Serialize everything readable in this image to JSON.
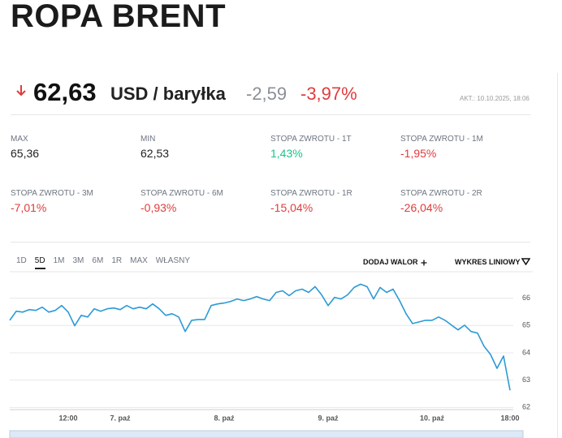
{
  "header": {
    "title": "ROPA BRENT",
    "price": "62,63",
    "unit": "USD / baryłka",
    "change": "-2,59",
    "change_pct": "-3,97%",
    "updated": "AKT.: 10.10.2025, 18:06"
  },
  "stats": [
    {
      "label": "MAX",
      "value": "65,36",
      "color": "#222222"
    },
    {
      "label": "MIN",
      "value": "62,53",
      "color": "#222222"
    },
    {
      "label": "STOPA ZWROTU - 1T",
      "value": "1,43%",
      "color": "#1ec28b"
    },
    {
      "label": "STOPA ZWROTU - 1M",
      "value": "-1,95%",
      "color": "#e03c3c"
    },
    {
      "label": "STOPA ZWROTU - 3M",
      "value": "-7,01%",
      "color": "#e03c3c"
    },
    {
      "label": "STOPA ZWROTU - 6M",
      "value": "-0,93%",
      "color": "#e03c3c"
    },
    {
      "label": "STOPA ZWROTU - 1R",
      "value": "-15,04%",
      "color": "#e03c3c"
    },
    {
      "label": "STOPA ZWROTU - 2R",
      "value": "-26,04%",
      "color": "#e03c3c"
    }
  ],
  "tabs": [
    "1D",
    "5D",
    "1M",
    "3M",
    "6M",
    "1R",
    "MAX",
    "WŁASNY"
  ],
  "active_tab": 1,
  "tools": {
    "add": "DODAJ WALOR",
    "chart_type": "WYKRES LINIOWY"
  },
  "chart_data": {
    "type": "line",
    "categories": [
      null,
      null,
      null,
      null,
      null,
      null,
      null,
      null,
      null,
      "12:00",
      null,
      null,
      null,
      null,
      null,
      null,
      null,
      "7. paź",
      null,
      null,
      null,
      null,
      null,
      null,
      null,
      null,
      null,
      null,
      null,
      null,
      null,
      null,
      null,
      "8. paź",
      null,
      null,
      null,
      null,
      null,
      null,
      null,
      null,
      null,
      null,
      null,
      null,
      null,
      null,
      null,
      "9. paź",
      null,
      null,
      null,
      null,
      null,
      null,
      null,
      null,
      null,
      null,
      null,
      null,
      null,
      null,
      null,
      "10. paź",
      null,
      null,
      null,
      null,
      null,
      null,
      null,
      null,
      null,
      null,
      null,
      "18:00"
    ],
    "values": [
      65.19,
      65.52,
      65.49,
      65.58,
      65.55,
      65.67,
      65.49,
      65.55,
      65.73,
      65.49,
      64.99,
      65.37,
      65.31,
      65.61,
      65.52,
      65.61,
      65.64,
      65.58,
      65.73,
      65.61,
      65.67,
      65.61,
      65.79,
      65.61,
      65.37,
      65.43,
      65.31,
      64.78,
      65.19,
      65.22,
      65.22,
      65.73,
      65.79,
      65.82,
      65.88,
      65.97,
      65.91,
      65.97,
      66.06,
      65.97,
      65.91,
      66.21,
      66.27,
      66.09,
      66.27,
      66.33,
      66.21,
      66.42,
      66.12,
      65.73,
      66.03,
      65.97,
      66.12,
      66.39,
      66.51,
      66.42,
      65.97,
      66.39,
      66.21,
      66.33,
      65.91,
      65.43,
      65.07,
      65.13,
      65.19,
      65.19,
      65.31,
      65.19,
      65.01,
      64.84,
      65.01,
      64.78,
      64.72,
      64.24,
      63.94,
      63.43,
      63.88,
      62.63
    ],
    "color": "#2b9ad6",
    "ylim": [
      61.95,
      66.7
    ],
    "yticks": [
      62,
      63,
      64,
      65,
      66
    ],
    "grid": true
  }
}
